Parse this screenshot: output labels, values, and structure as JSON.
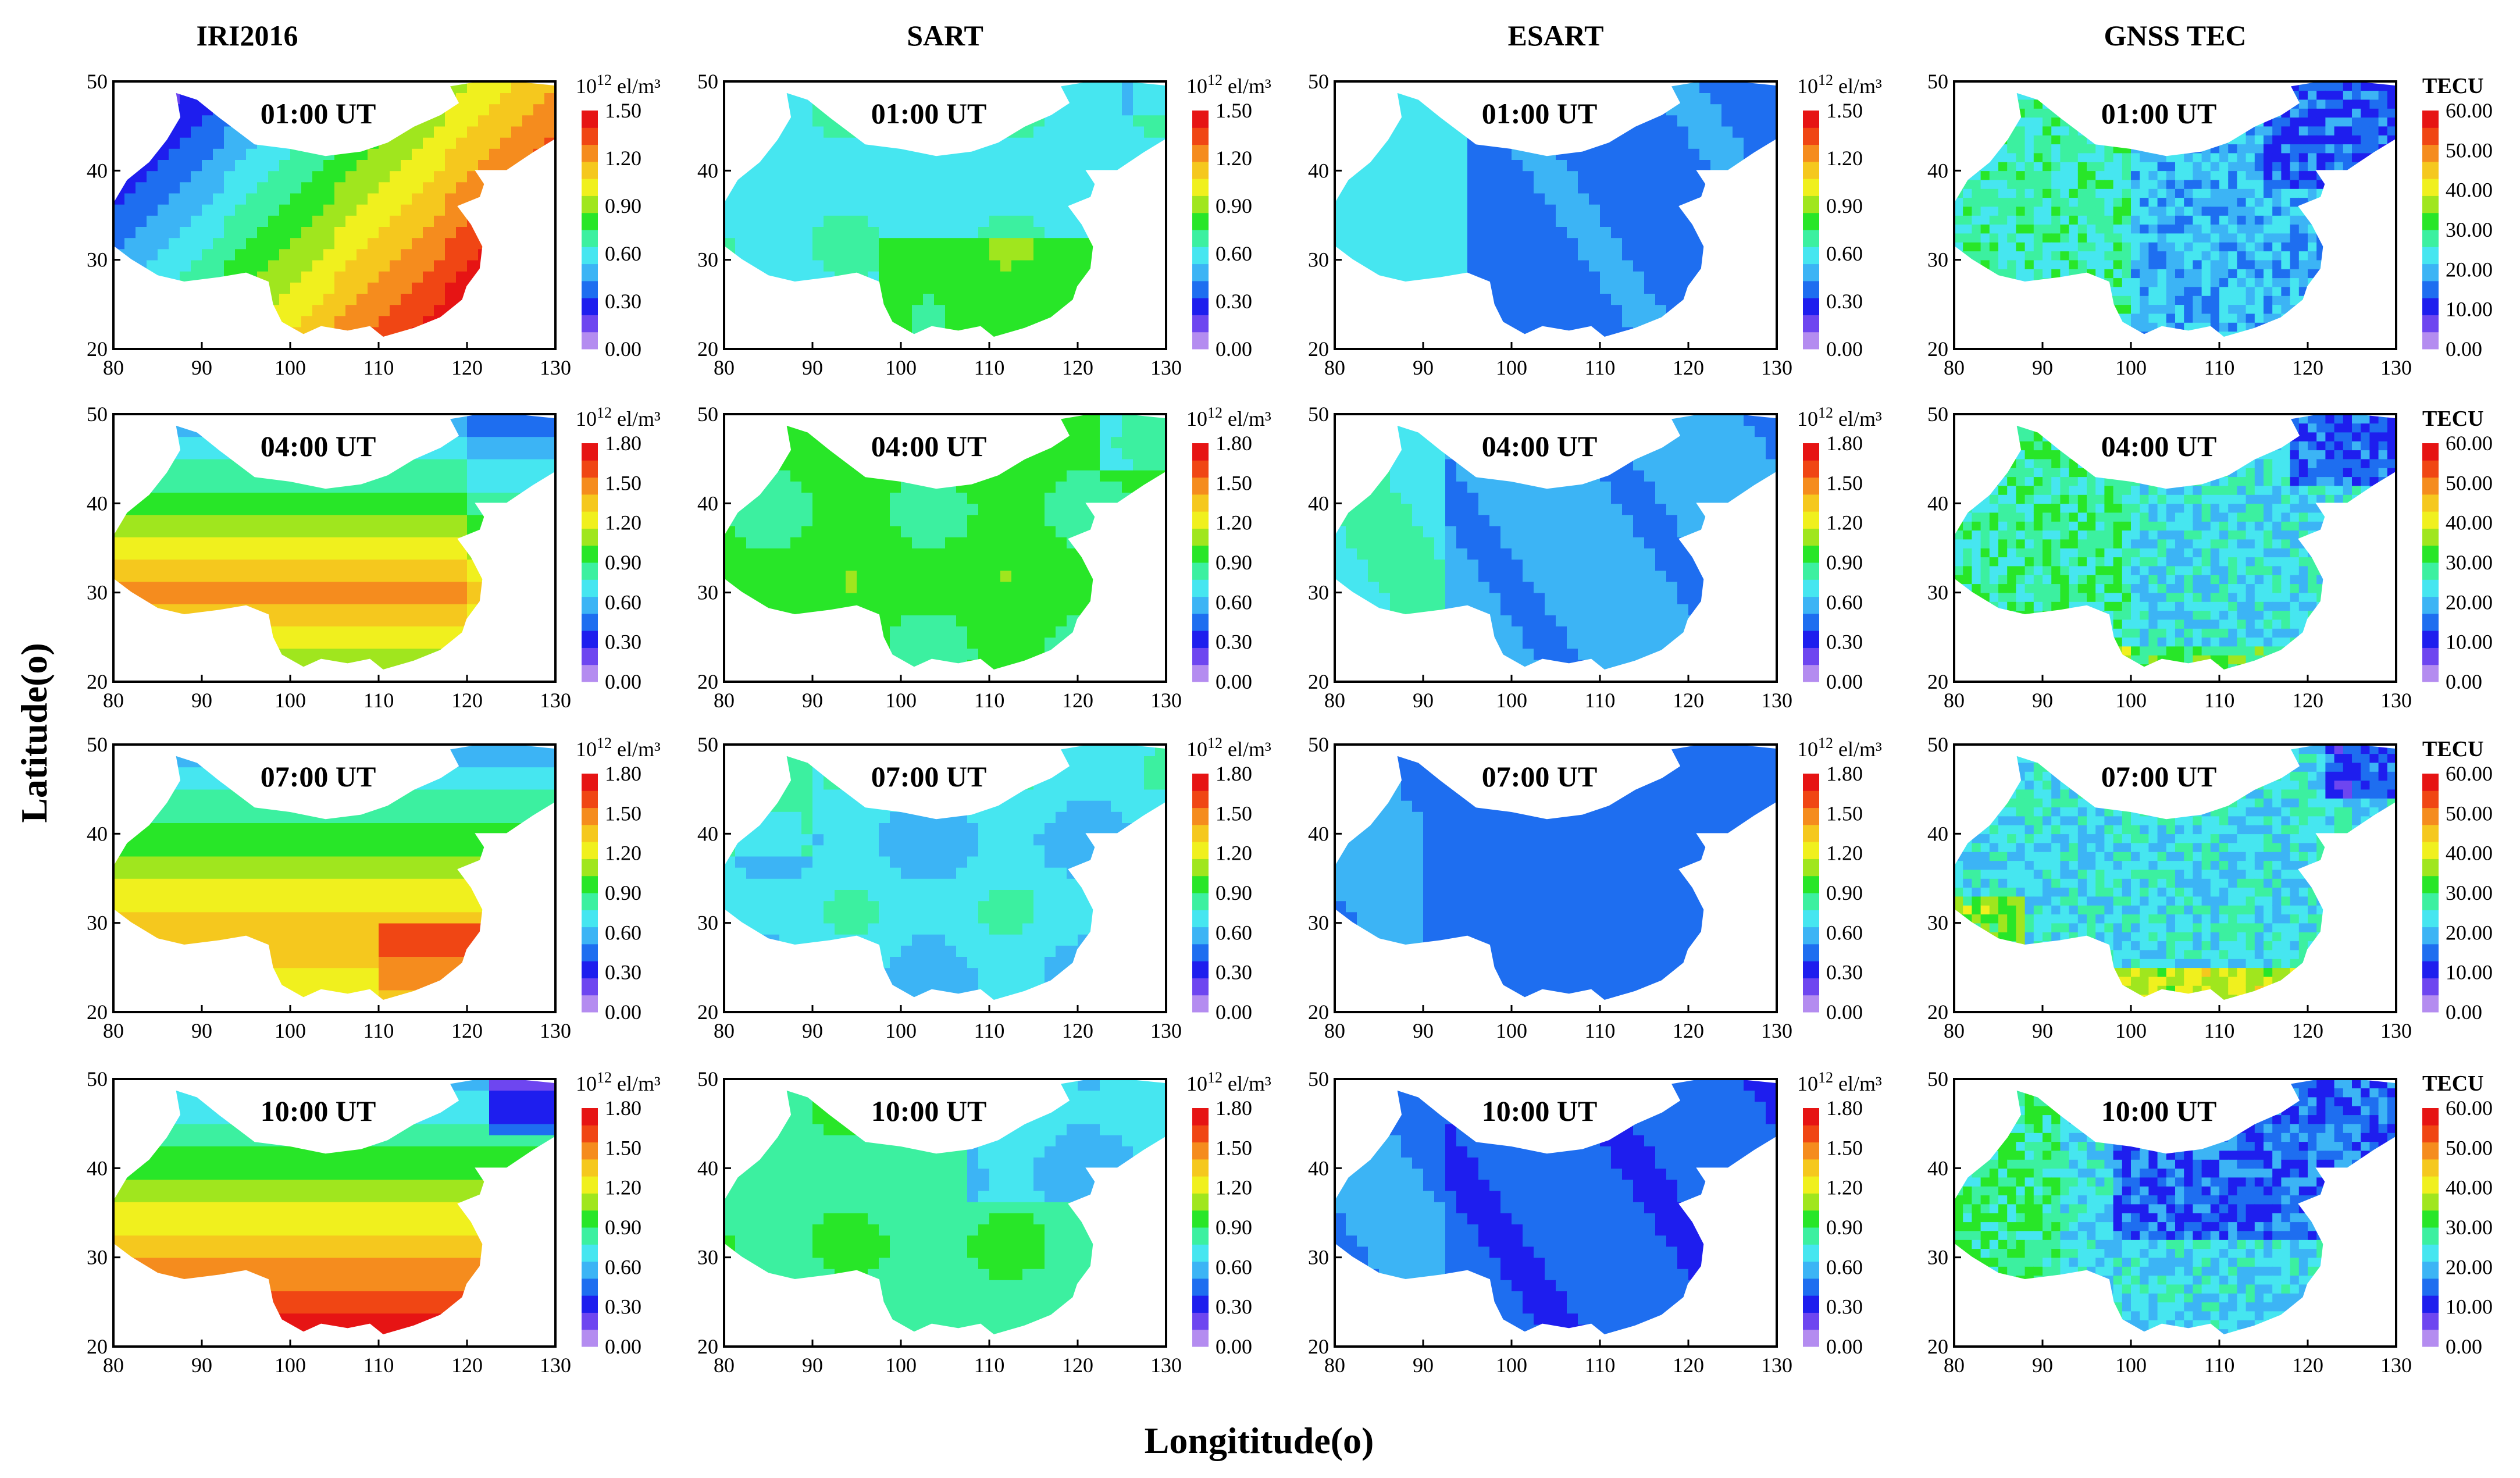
{
  "figure": {
    "x_label": "Longititude(o)",
    "y_label": "Latitude(o)"
  },
  "columns": [
    {
      "id": "iri",
      "title": "IRI2016",
      "unit": "el/m³",
      "unit_prefix": "10",
      "unit_exp": "12"
    },
    {
      "id": "sart",
      "title": "SART",
      "unit": "el/m³",
      "unit_prefix": "10",
      "unit_exp": "12"
    },
    {
      "id": "esart",
      "title": "ESART",
      "unit": "el/m³",
      "unit_prefix": "10",
      "unit_exp": "12"
    },
    {
      "id": "gnss",
      "title": "GNSS TEC",
      "unit": "TECU",
      "unit_prefix": "",
      "unit_exp": ""
    }
  ],
  "rows": [
    {
      "time": "01:00 UT"
    },
    {
      "time": "04:00 UT"
    },
    {
      "time": "07:00 UT"
    },
    {
      "time": "10:00 UT"
    }
  ],
  "colorbars": {
    "iri_r0": [
      "0.00",
      "0.30",
      "0.60",
      "0.90",
      "1.20",
      "1.50"
    ],
    "density_1_8": [
      "0.00",
      "0.30",
      "0.60",
      "0.90",
      "1.20",
      "1.50",
      "1.80"
    ],
    "density_1_5": [
      "0.00",
      "0.30",
      "0.60",
      "0.90",
      "1.20",
      "1.50"
    ],
    "tecu": [
      "0.00",
      "10.00",
      "20.00",
      "30.00",
      "40.00",
      "50.00",
      "60.00"
    ],
    "tecu_r0": [
      "0.00",
      "10.00",
      "20.00",
      "30.00",
      "40.00",
      "50.00",
      "60.00"
    ]
  },
  "colors": {
    "palette": [
      "#b48cf0",
      "#6e46f0",
      "#1e1eee",
      "#1e6ef0",
      "#3cb4f5",
      "#46e6f0",
      "#3cf0a0",
      "#28e628",
      "#a0e61e",
      "#f0f01e",
      "#f5c81e",
      "#f58c1e",
      "#f04614",
      "#e61414"
    ]
  },
  "chart_data": [
    {
      "type": "heatmap",
      "title": "IRI2016 01:00 UT",
      "xlabel": "Longititude(o)",
      "ylabel": "Latitude(o)",
      "xlim": [
        80,
        130
      ],
      "ylim": [
        20,
        50
      ],
      "x_ticks": [
        80,
        90,
        100,
        110,
        120,
        130
      ],
      "y_ticks": [
        20,
        30,
        40,
        50
      ],
      "colorbar_range": [
        0,
        1.5
      ],
      "unit": "10^12 el/m^3"
    },
    {
      "type": "heatmap",
      "title": "SART 01:00 UT",
      "xlim": [
        80,
        130
      ],
      "ylim": [
        20,
        50
      ],
      "x_ticks": [
        80,
        90,
        100,
        110,
        120,
        130
      ],
      "y_ticks": [
        20,
        30,
        40,
        50
      ],
      "colorbar_range": [
        0,
        1.5
      ],
      "unit": "10^12 el/m^3"
    },
    {
      "type": "heatmap",
      "title": "ESART 01:00 UT",
      "xlim": [
        80,
        130
      ],
      "ylim": [
        20,
        50
      ],
      "x_ticks": [
        80,
        90,
        100,
        110,
        120,
        130
      ],
      "y_ticks": [
        20,
        30,
        40,
        50
      ],
      "colorbar_range": [
        0,
        1.5
      ],
      "unit": "10^12 el/m^3"
    },
    {
      "type": "heatmap",
      "title": "GNSS TEC 01:00 UT",
      "xlim": [
        80,
        130
      ],
      "ylim": [
        20,
        50
      ],
      "x_ticks": [
        80,
        90,
        100,
        110,
        120,
        130
      ],
      "y_ticks": [
        20,
        30,
        40,
        50
      ],
      "colorbar_range": [
        0,
        60
      ],
      "unit": "TECU"
    },
    {
      "type": "heatmap",
      "title": "IRI2016 04:00 UT",
      "xlim": [
        80,
        130
      ],
      "ylim": [
        20,
        50
      ],
      "colorbar_range": [
        0,
        1.8
      ],
      "unit": "10^12 el/m^3"
    },
    {
      "type": "heatmap",
      "title": "SART 04:00 UT",
      "xlim": [
        80,
        130
      ],
      "ylim": [
        20,
        50
      ],
      "colorbar_range": [
        0,
        1.8
      ],
      "unit": "10^12 el/m^3"
    },
    {
      "type": "heatmap",
      "title": "ESART 04:00 UT",
      "xlim": [
        80,
        130
      ],
      "ylim": [
        20,
        50
      ],
      "colorbar_range": [
        0,
        1.8
      ],
      "unit": "10^12 el/m^3"
    },
    {
      "type": "heatmap",
      "title": "GNSS TEC 04:00 UT",
      "xlim": [
        80,
        130
      ],
      "ylim": [
        20,
        50
      ],
      "colorbar_range": [
        0,
        60
      ],
      "unit": "TECU"
    },
    {
      "type": "heatmap",
      "title": "IRI2016 07:00 UT",
      "xlim": [
        80,
        130
      ],
      "ylim": [
        20,
        50
      ],
      "colorbar_range": [
        0,
        1.8
      ],
      "unit": "10^12 el/m^3"
    },
    {
      "type": "heatmap",
      "title": "SART 07:00 UT",
      "xlim": [
        80,
        130
      ],
      "ylim": [
        20,
        50
      ],
      "colorbar_range": [
        0,
        1.8
      ],
      "unit": "10^12 el/m^3"
    },
    {
      "type": "heatmap",
      "title": "ESART 07:00 UT",
      "xlim": [
        80,
        130
      ],
      "ylim": [
        20,
        50
      ],
      "colorbar_range": [
        0,
        1.8
      ],
      "unit": "10^12 el/m^3"
    },
    {
      "type": "heatmap",
      "title": "GNSS TEC 07:00 UT",
      "xlim": [
        80,
        130
      ],
      "ylim": [
        20,
        50
      ],
      "colorbar_range": [
        0,
        60
      ],
      "unit": "TECU"
    },
    {
      "type": "heatmap",
      "title": "IRI2016 10:00 UT",
      "xlim": [
        80,
        130
      ],
      "ylim": [
        20,
        50
      ],
      "colorbar_range": [
        0,
        1.8
      ],
      "unit": "10^12 el/m^3"
    },
    {
      "type": "heatmap",
      "title": "SART 10:00 UT",
      "xlim": [
        80,
        130
      ],
      "ylim": [
        20,
        50
      ],
      "colorbar_range": [
        0,
        1.8
      ],
      "unit": "10^12 el/m^3"
    },
    {
      "type": "heatmap",
      "title": "ESART 10:00 UT",
      "xlim": [
        80,
        130
      ],
      "ylim": [
        20,
        50
      ],
      "colorbar_range": [
        0,
        1.8
      ],
      "unit": "10^12 el/m^3"
    },
    {
      "type": "heatmap",
      "title": "GNSS TEC 10:00 UT",
      "xlim": [
        80,
        130
      ],
      "ylim": [
        20,
        50
      ],
      "colorbar_range": [
        0,
        60
      ],
      "unit": "TECU"
    }
  ]
}
